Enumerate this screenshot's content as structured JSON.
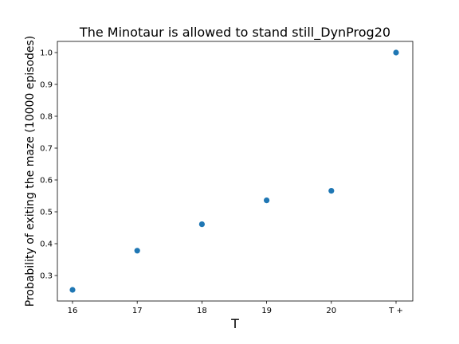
{
  "chart_data": {
    "type": "scatter",
    "title": "The Minotaur is allowed to stand still_DynProg20",
    "xlabel": "T",
    "ylabel": "Probability of exiting the maze (10000 episodes)",
    "categories": [
      "16",
      "17",
      "18",
      "19",
      "20",
      "T +"
    ],
    "values": [
      0.255,
      0.378,
      0.461,
      0.536,
      0.566,
      1.0
    ],
    "yticks": [
      "0.3",
      "0.4",
      "0.5",
      "0.6",
      "0.7",
      "0.8",
      "0.9",
      "1.0"
    ],
    "ylim": [
      0.22,
      1.035
    ],
    "grid": false,
    "legend": "none",
    "marker_color": "#1f77b4"
  }
}
